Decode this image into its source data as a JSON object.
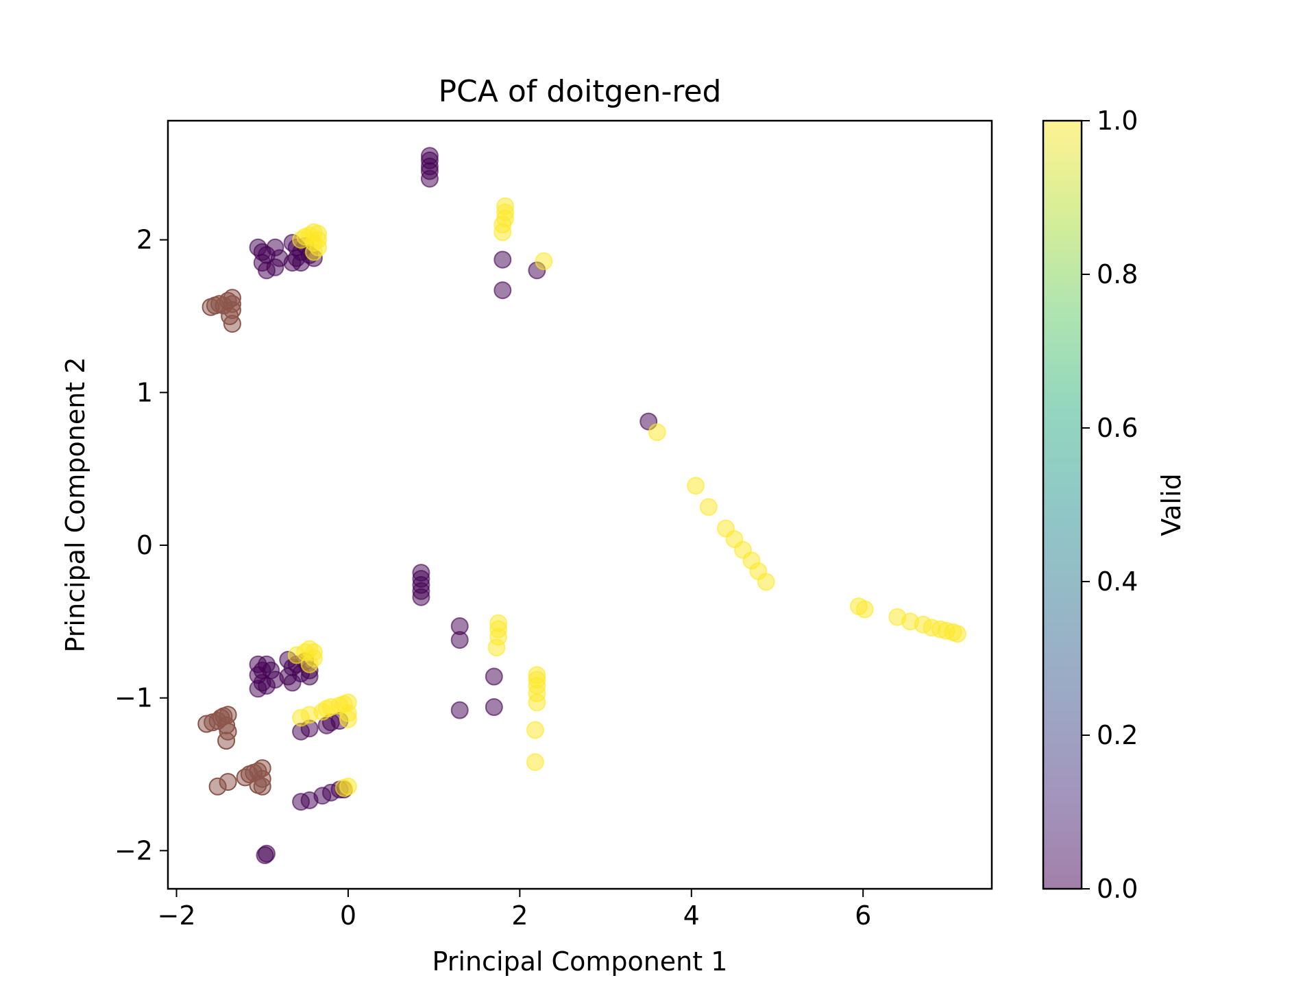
{
  "chart_data": {
    "type": "scatter",
    "title": "PCA of doitgen-red",
    "xlabel": "Principal Component 1",
    "ylabel": "Principal Component 2",
    "xlim": [
      -2.1,
      7.5
    ],
    "ylim": [
      -2.25,
      2.78
    ],
    "x_ticks": [
      {
        "value": -2,
        "label": "−2"
      },
      {
        "value": 0,
        "label": "0"
      },
      {
        "value": 2,
        "label": "2"
      },
      {
        "value": 4,
        "label": "4"
      },
      {
        "value": 6,
        "label": "6"
      }
    ],
    "y_ticks": [
      {
        "value": -2,
        "label": "−2"
      },
      {
        "value": -1,
        "label": "−1"
      },
      {
        "value": 0,
        "label": "0"
      },
      {
        "value": 1,
        "label": "1"
      },
      {
        "value": 2,
        "label": "2"
      }
    ],
    "grid": false,
    "marker_alpha": 0.5,
    "colorbar": {
      "label": "Valid",
      "range": [
        0.0,
        1.0
      ],
      "colormap": "viridis",
      "ticks": [
        {
          "value": 0.0,
          "label": "0.0"
        },
        {
          "value": 0.2,
          "label": "0.2"
        },
        {
          "value": 0.4,
          "label": "0.4"
        },
        {
          "value": 0.6,
          "label": "0.6"
        },
        {
          "value": 0.8,
          "label": "0.8"
        },
        {
          "value": 1.0,
          "label": "1.0"
        }
      ]
    },
    "colors": {
      "valid_0": "#440154",
      "valid_1": "#fde725",
      "other": "#8c564b"
    },
    "series": [
      {
        "valid": 0,
        "points": [
          [
            0.95,
            2.55
          ],
          [
            0.95,
            2.52
          ],
          [
            0.95,
            2.48
          ],
          [
            0.95,
            2.45
          ],
          [
            0.95,
            2.4
          ],
          [
            1.8,
            1.87
          ],
          [
            1.8,
            1.67
          ],
          [
            2.2,
            1.8
          ],
          [
            -1.05,
            1.95
          ],
          [
            -1.0,
            1.92
          ],
          [
            -0.95,
            1.9
          ],
          [
            -1.0,
            1.85
          ],
          [
            -0.95,
            1.8
          ],
          [
            -0.85,
            1.95
          ],
          [
            -0.8,
            1.88
          ],
          [
            -0.85,
            1.82
          ],
          [
            -0.65,
            1.98
          ],
          [
            -0.6,
            1.95
          ],
          [
            -0.55,
            1.92
          ],
          [
            -0.6,
            1.88
          ],
          [
            -0.55,
            1.85
          ],
          [
            -0.5,
            1.96
          ],
          [
            -0.45,
            1.9
          ],
          [
            -0.4,
            1.88
          ],
          [
            -0.65,
            1.85
          ],
          [
            3.5,
            0.81
          ],
          [
            0.85,
            -0.18
          ],
          [
            0.85,
            -0.22
          ],
          [
            0.85,
            -0.26
          ],
          [
            0.85,
            -0.3
          ],
          [
            0.85,
            -0.34
          ],
          [
            1.3,
            -0.53
          ],
          [
            1.3,
            -0.62
          ],
          [
            1.3,
            -1.08
          ],
          [
            1.7,
            -0.86
          ],
          [
            1.7,
            -1.06
          ],
          [
            -1.05,
            -0.78
          ],
          [
            -1.0,
            -0.82
          ],
          [
            -0.95,
            -0.78
          ],
          [
            -1.05,
            -0.85
          ],
          [
            -0.9,
            -0.82
          ],
          [
            -1.0,
            -0.9
          ],
          [
            -1.05,
            -0.94
          ],
          [
            -0.95,
            -0.92
          ],
          [
            -0.85,
            -0.88
          ],
          [
            -0.7,
            -0.75
          ],
          [
            -0.65,
            -0.8
          ],
          [
            -0.6,
            -0.78
          ],
          [
            -0.7,
            -0.86
          ],
          [
            -0.55,
            -0.84
          ],
          [
            -0.65,
            -0.9
          ],
          [
            -0.5,
            -0.76
          ],
          [
            -0.45,
            -0.82
          ],
          [
            -0.45,
            -0.86
          ],
          [
            -0.55,
            -1.22
          ],
          [
            -0.45,
            -1.2
          ],
          [
            -0.25,
            -1.18
          ],
          [
            -0.2,
            -1.16
          ],
          [
            -0.1,
            -1.15
          ],
          [
            -0.55,
            -1.68
          ],
          [
            -0.45,
            -1.67
          ],
          [
            -0.3,
            -1.64
          ],
          [
            -0.2,
            -1.62
          ],
          [
            -0.1,
            -1.6
          ],
          [
            -0.05,
            -1.6
          ],
          [
            -0.95,
            -2.02
          ],
          [
            -0.97,
            -2.03
          ]
        ]
      },
      {
        "valid": 1,
        "points": [
          [
            1.83,
            2.22
          ],
          [
            1.83,
            2.18
          ],
          [
            1.83,
            2.14
          ],
          [
            1.8,
            2.1
          ],
          [
            1.8,
            2.05
          ],
          [
            2.28,
            1.86
          ],
          [
            -0.55,
            2.0
          ],
          [
            -0.5,
            2.02
          ],
          [
            -0.45,
            2.03
          ],
          [
            -0.4,
            2.05
          ],
          [
            -0.35,
            2.04
          ],
          [
            -0.35,
            2.0
          ],
          [
            -0.4,
            1.98
          ],
          [
            -0.35,
            1.95
          ],
          [
            -0.4,
            1.92
          ],
          [
            3.6,
            0.74
          ],
          [
            4.05,
            0.39
          ],
          [
            4.2,
            0.25
          ],
          [
            4.4,
            0.11
          ],
          [
            4.5,
            0.04
          ],
          [
            4.6,
            -0.03
          ],
          [
            4.7,
            -0.1
          ],
          [
            4.78,
            -0.17
          ],
          [
            4.87,
            -0.24
          ],
          [
            5.95,
            -0.4
          ],
          [
            6.02,
            -0.42
          ],
          [
            6.4,
            -0.47
          ],
          [
            6.55,
            -0.5
          ],
          [
            6.7,
            -0.52
          ],
          [
            6.8,
            -0.54
          ],
          [
            6.9,
            -0.55
          ],
          [
            6.97,
            -0.56
          ],
          [
            7.05,
            -0.57
          ],
          [
            7.1,
            -0.58
          ],
          [
            1.75,
            -0.51
          ],
          [
            1.75,
            -0.55
          ],
          [
            1.75,
            -0.6
          ],
          [
            1.73,
            -0.67
          ],
          [
            2.2,
            -0.85
          ],
          [
            2.2,
            -0.88
          ],
          [
            2.2,
            -0.92
          ],
          [
            2.2,
            -0.97
          ],
          [
            2.2,
            -1.03
          ],
          [
            2.18,
            -1.21
          ],
          [
            2.18,
            -1.42
          ],
          [
            -0.6,
            -0.72
          ],
          [
            -0.5,
            -0.7
          ],
          [
            -0.45,
            -0.68
          ],
          [
            -0.4,
            -0.7
          ],
          [
            -0.4,
            -0.74
          ],
          [
            -0.45,
            -0.78
          ],
          [
            -0.55,
            -1.13
          ],
          [
            -0.45,
            -1.11
          ],
          [
            -0.3,
            -1.09
          ],
          [
            -0.25,
            -1.07
          ],
          [
            -0.2,
            -1.06
          ],
          [
            -0.1,
            -1.05
          ],
          [
            -0.05,
            -1.04
          ],
          [
            0.0,
            -1.03
          ],
          [
            0.0,
            -1.1
          ],
          [
            0.0,
            -1.14
          ],
          [
            -0.05,
            -1.59
          ],
          [
            0.0,
            -1.58
          ]
        ]
      },
      {
        "valid": null,
        "points": [
          [
            -1.6,
            1.56
          ],
          [
            -1.55,
            1.57
          ],
          [
            -1.5,
            1.58
          ],
          [
            -1.45,
            1.57
          ],
          [
            -1.4,
            1.6
          ],
          [
            -1.35,
            1.62
          ],
          [
            -1.35,
            1.58
          ],
          [
            -1.35,
            1.54
          ],
          [
            -1.38,
            1.5
          ],
          [
            -1.35,
            1.45
          ],
          [
            -1.65,
            -1.17
          ],
          [
            -1.58,
            -1.16
          ],
          [
            -1.52,
            -1.15
          ],
          [
            -1.48,
            -1.13
          ],
          [
            -1.45,
            -1.12
          ],
          [
            -1.4,
            -1.11
          ],
          [
            -1.42,
            -1.18
          ],
          [
            -1.4,
            -1.22
          ],
          [
            -1.42,
            -1.28
          ],
          [
            -1.52,
            -1.58
          ],
          [
            -1.4,
            -1.55
          ],
          [
            -1.2,
            -1.52
          ],
          [
            -1.15,
            -1.5
          ],
          [
            -1.1,
            -1.49
          ],
          [
            -1.05,
            -1.48
          ],
          [
            -1.0,
            -1.46
          ],
          [
            -1.0,
            -1.53
          ],
          [
            -1.05,
            -1.57
          ],
          [
            -1.0,
            -1.58
          ]
        ]
      }
    ]
  }
}
